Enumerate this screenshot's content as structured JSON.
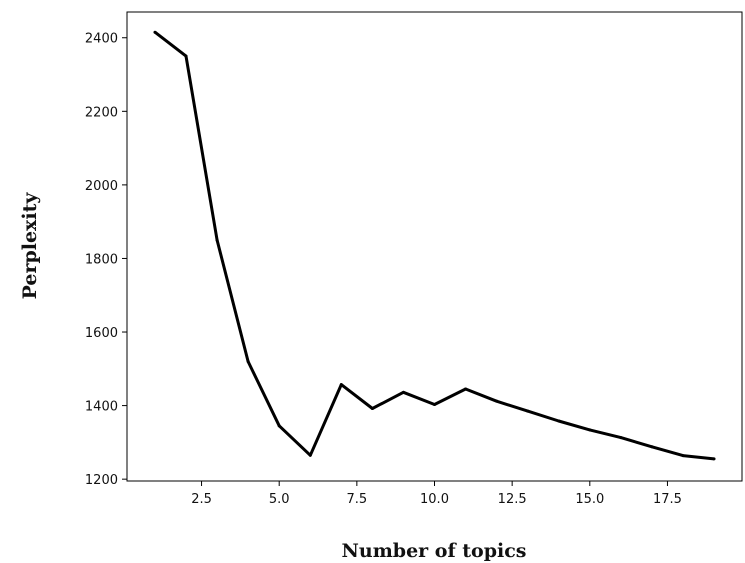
{
  "chart_data": {
    "type": "line",
    "title": "",
    "xlabel": "Number of topics",
    "ylabel": "Perplexity",
    "xlim": [
      0.1,
      19.9
    ],
    "ylim": [
      1195,
      2470
    ],
    "x_ticks": [
      2.5,
      5.0,
      7.5,
      10.0,
      12.5,
      15.0,
      17.5
    ],
    "x_tick_labels": [
      "2.5",
      "5.0",
      "7.5",
      "10.0",
      "12.5",
      "15.0",
      "17.5"
    ],
    "y_ticks": [
      1200,
      1400,
      1600,
      1800,
      2000,
      2200,
      2400
    ],
    "y_tick_labels": [
      "1200",
      "1400",
      "1600",
      "1800",
      "2000",
      "2200",
      "2400"
    ],
    "grid": false,
    "line_color": "#000000",
    "series": [
      {
        "x": [
          1,
          2,
          3,
          4,
          5,
          6,
          7,
          8,
          9,
          10,
          11,
          12,
          13,
          14,
          15,
          16,
          17,
          18,
          19
        ],
        "values": [
          2415,
          2350,
          1850,
          1520,
          1345,
          1265,
          1457,
          1392,
          1436,
          1403,
          1445,
          1412,
          1385,
          1358,
          1334,
          1313,
          1288,
          1264,
          1255
        ]
      }
    ]
  }
}
